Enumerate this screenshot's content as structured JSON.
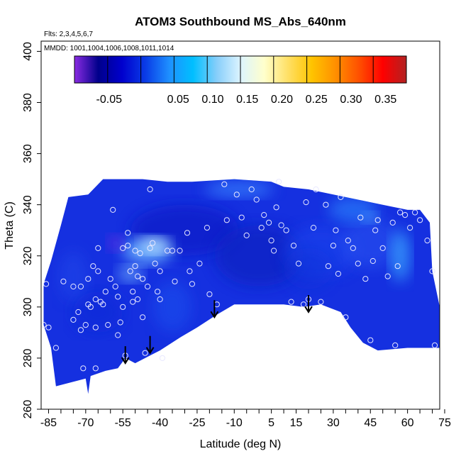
{
  "chart_data": {
    "type": "heatmap",
    "title": "ATOM3 Southbound MS_Abs_640nm",
    "flights_note": "Flts: 2,3,4,5,6,7",
    "dates_note": "MMDD: 1001,1004,1006,1008,1011,1014",
    "xlabel": "Latitude (deg N)",
    "ylabel": "Theta (C)",
    "xlim": [
      -88,
      73
    ],
    "ylim": [
      260,
      404
    ],
    "x_tick_labels": [
      "-85",
      "-70",
      "-55",
      "-40",
      "-25",
      "-10",
      "5",
      "15",
      "30",
      "45",
      "60",
      "75"
    ],
    "x_tick_values": [
      -85,
      -70,
      -55,
      -40,
      -25,
      -10,
      5,
      15,
      30,
      45,
      60,
      75
    ],
    "y_tick_labels": [
      "260",
      "280",
      "300",
      "320",
      "340",
      "360",
      "380",
      "400"
    ],
    "y_tick_values": [
      260,
      280,
      300,
      320,
      340,
      360,
      380,
      400
    ],
    "colorbar": {
      "labels": [
        "-0.05",
        "0.05",
        "0.10",
        "0.15",
        "0.20",
        "0.25",
        "0.30",
        "0.35"
      ],
      "label_values": [
        -0.05,
        0.05,
        0.1,
        0.15,
        0.2,
        0.25,
        0.3,
        0.35
      ],
      "range": [
        -0.1,
        0.38
      ],
      "colors": [
        "#8a2be2",
        "#00008b",
        "#0000cd",
        "#0a3ce6",
        "#1e90ff",
        "#00bfff",
        "#87cefa",
        "#dcf4ff",
        "#ffffcc",
        "#ffe066",
        "#ffc400",
        "#ff9000",
        "#ff5000",
        "#ff0000",
        "#b22222"
      ]
    },
    "points": [
      [
        -87,
        293
      ],
      [
        -86,
        309
      ],
      [
        -85,
        292
      ],
      [
        -82,
        284
      ],
      [
        -79,
        310
      ],
      [
        -75,
        308
      ],
      [
        -75,
        295
      ],
      [
        -73,
        298
      ],
      [
        -72,
        291
      ],
      [
        -72,
        308
      ],
      [
        -71,
        276
      ],
      [
        -70,
        293
      ],
      [
        -69,
        301
      ],
      [
        -69,
        311
      ],
      [
        -68,
        300
      ],
      [
        -67,
        316
      ],
      [
        -66,
        303
      ],
      [
        -66,
        292
      ],
      [
        -66,
        276
      ],
      [
        -65,
        314
      ],
      [
        -65,
        323
      ],
      [
        -64,
        302
      ],
      [
        -63,
        301
      ],
      [
        -62,
        306
      ],
      [
        -61,
        293
      ],
      [
        -60,
        311
      ],
      [
        -59,
        338
      ],
      [
        -58,
        308
      ],
      [
        -57,
        304
      ],
      [
        -57,
        289
      ],
      [
        -56,
        294
      ],
      [
        -55,
        323
      ],
      [
        -55,
        300
      ],
      [
        -54,
        281
      ],
      [
        -53,
        329
      ],
      [
        -53,
        324
      ],
      [
        -52,
        314
      ],
      [
        -51,
        306
      ],
      [
        -51,
        302
      ],
      [
        -50,
        316
      ],
      [
        -50,
        322
      ],
      [
        -49,
        312
      ],
      [
        -49,
        303
      ],
      [
        -48,
        321
      ],
      [
        -47,
        311
      ],
      [
        -47,
        296
      ],
      [
        -46,
        282
      ],
      [
        -45,
        308
      ],
      [
        -44,
        323
      ],
      [
        -44,
        346
      ],
      [
        -43,
        325
      ],
      [
        -42,
        317
      ],
      [
        -41,
        306
      ],
      [
        -40,
        314
      ],
      [
        -40,
        303
      ],
      [
        -39,
        280
      ],
      [
        -37,
        322
      ],
      [
        -35,
        322
      ],
      [
        -34,
        310
      ],
      [
        -32,
        322
      ],
      [
        -29,
        329
      ],
      [
        -28,
        314
      ],
      [
        -27,
        309
      ],
      [
        -24,
        317
      ],
      [
        -21,
        331
      ],
      [
        -20,
        305
      ],
      [
        -17,
        301
      ],
      [
        -14,
        348
      ],
      [
        -13,
        334
      ],
      [
        -9,
        344
      ],
      [
        -7,
        335
      ],
      [
        -5,
        328
      ],
      [
        -3,
        346
      ],
      [
        -1,
        342
      ],
      [
        1,
        331
      ],
      [
        2,
        336
      ],
      [
        4,
        333
      ],
      [
        5,
        326
      ],
      [
        6,
        322
      ],
      [
        7,
        339
      ],
      [
        8,
        349
      ],
      [
        9,
        332
      ],
      [
        11,
        330
      ],
      [
        13,
        302
      ],
      [
        14,
        324
      ],
      [
        16,
        317
      ],
      [
        18,
        301
      ],
      [
        19,
        341
      ],
      [
        20,
        303
      ],
      [
        22,
        331
      ],
      [
        23,
        346
      ],
      [
        25,
        302
      ],
      [
        27,
        340
      ],
      [
        28,
        316
      ],
      [
        30,
        324
      ],
      [
        31,
        330
      ],
      [
        32,
        313
      ],
      [
        33,
        343
      ],
      [
        35,
        296
      ],
      [
        36,
        326
      ],
      [
        38,
        323
      ],
      [
        40,
        317
      ],
      [
        41,
        335
      ],
      [
        43,
        311
      ],
      [
        45,
        287
      ],
      [
        46,
        318
      ],
      [
        47,
        330
      ],
      [
        48,
        334
      ],
      [
        50,
        323
      ],
      [
        52,
        312
      ],
      [
        54,
        333
      ],
      [
        55,
        285
      ],
      [
        56,
        316
      ],
      [
        57,
        337
      ],
      [
        59,
        336
      ],
      [
        61,
        331
      ],
      [
        63,
        337
      ],
      [
        65,
        334
      ],
      [
        68,
        326
      ],
      [
        70,
        314
      ],
      [
        71,
        285
      ]
    ],
    "arrows": [
      [
        -54,
        278
      ],
      [
        -44,
        282
      ],
      [
        -18,
        296
      ],
      [
        20,
        298
      ]
    ]
  }
}
